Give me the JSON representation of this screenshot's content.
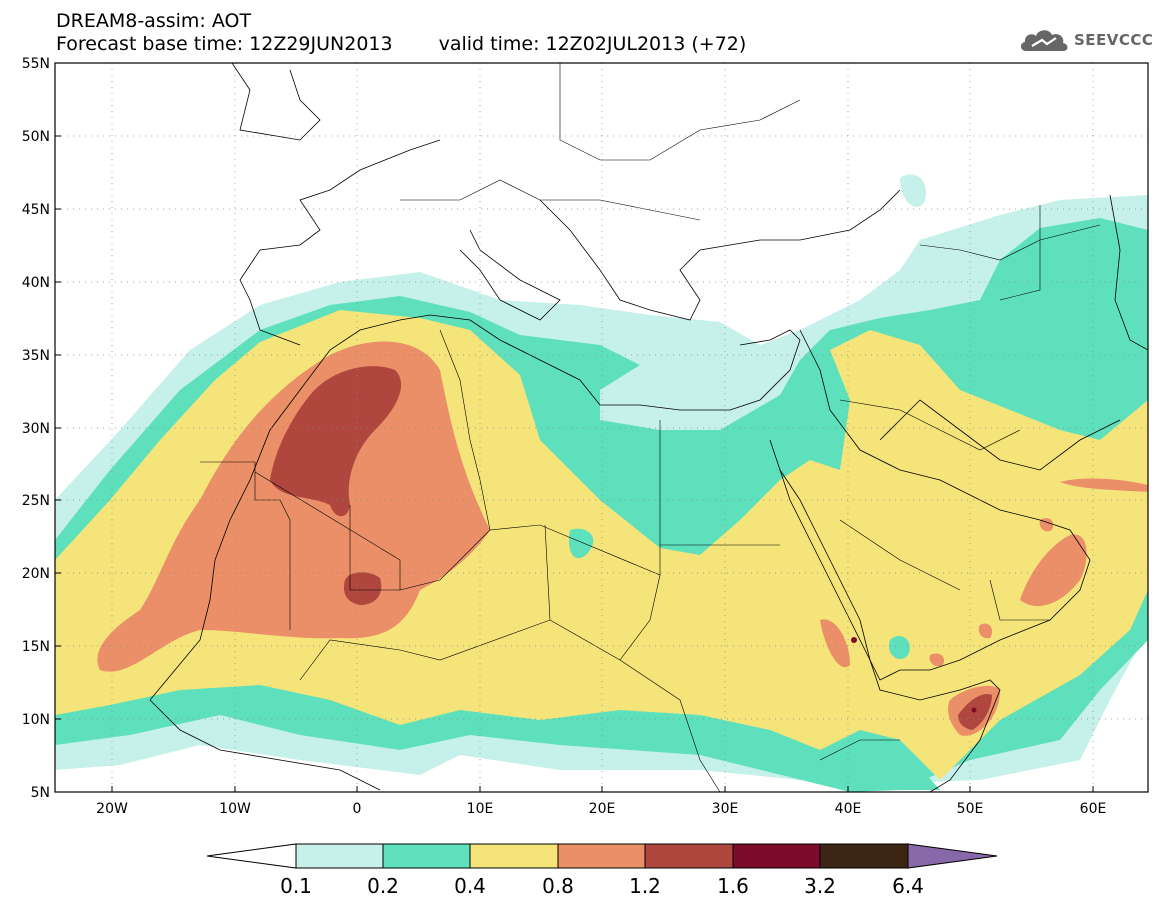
{
  "header": {
    "title": "DREAM8-assim: AOT",
    "base_time": "Forecast base time: 12Z29JUN2013",
    "valid_time": "valid time: 12Z02JUL2013 (+72)"
  },
  "logo": {
    "text": "SEEVCCC",
    "icon": "cloud-icon"
  },
  "map": {
    "lat_labels": [
      "55N",
      "50N",
      "45N",
      "40N",
      "35N",
      "30N",
      "25N",
      "20N",
      "15N",
      "10N",
      "5N"
    ],
    "lon_labels": [
      "20W",
      "10W",
      "0",
      "10E",
      "20E",
      "30E",
      "40E",
      "50E",
      "60E"
    ]
  },
  "colorbar": {
    "labels": [
      "0.1",
      "0.2",
      "0.4",
      "0.8",
      "1.2",
      "1.6",
      "3.2",
      "6.4"
    ],
    "colors": [
      "#ffffff",
      "#c6f0ea",
      "#5ee0bc",
      "#f5e47a",
      "#ea8f68",
      "#b0473f",
      "#7d0b2a",
      "#3d2515",
      "#8868a8"
    ]
  }
}
